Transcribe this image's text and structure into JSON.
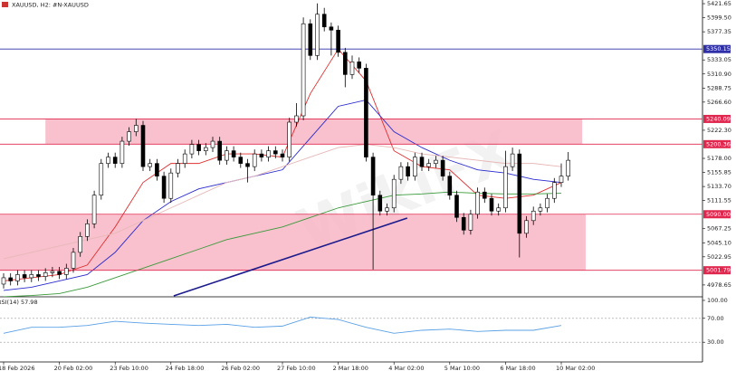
{
  "header": {
    "title": "XAUUSD, H2: #N-XAUUSD"
  },
  "watermark": "WikiFX",
  "chart_data": {
    "type": "candlestick",
    "up_color": "#ffffff",
    "down_color": "#000000",
    "ylim": [
      4960,
      5427.4
    ],
    "yticks": [
      5421.65,
      {
        "value": 5399.5,
        "label": "5399.50"
      },
      5377.35,
      5333.05,
      {
        "value": 5310.9,
        "label": "5310.90"
      },
      5288.75,
      {
        "value": 5266.6,
        "label": "5266.60"
      },
      {
        "value": 5222.3,
        "label": "5222.30"
      },
      {
        "value": 5178,
        "label": "5178.00"
      },
      5155.85,
      {
        "value": 5133.7,
        "label": "5133.70"
      },
      5111.55,
      5067.25,
      {
        "value": 5045.1,
        "label": "5045.10"
      },
      5022.95,
      4978.65
    ],
    "xticks": [
      {
        "value": 0,
        "label": "18 Feb 2026"
      },
      {
        "value": 8,
        "label": "20 Feb 02:00"
      },
      {
        "value": 16,
        "label": "23 Feb 10:00"
      },
      {
        "value": 24,
        "label": "24 Feb 18:00"
      },
      {
        "value": 32,
        "label": "26 Feb 02:00"
      },
      {
        "value": 40,
        "label": "27 Feb 10:00"
      },
      {
        "value": 48,
        "label": "2 Mar 18:00"
      },
      {
        "value": 56,
        "label": "4 Mar 02:00"
      },
      {
        "value": 64,
        "label": "5 Mar 10:00"
      },
      {
        "value": 72,
        "label": "6 Mar 18:00"
      },
      {
        "value": 80,
        "label": "10 Mar 02:00"
      }
    ],
    "open": [
      4980,
      4990,
      4985,
      4995,
      4990,
      4995,
      4992,
      4998,
      5000,
      4995,
      5005,
      5030,
      5055,
      5075,
      5120,
      5170,
      5180,
      5170,
      5205,
      5220,
      5230,
      5165,
      5170,
      5150,
      5115,
      5155,
      5170,
      5185,
      5200,
      5190,
      5195,
      5205,
      5175,
      5190,
      5180,
      5170,
      5165,
      5185,
      5180,
      5190,
      5185,
      5180,
      5235,
      5245,
      5390,
      5340,
      5405,
      5385,
      5380,
      5345,
      5310,
      5330,
      5320,
      5180,
      5120,
      5095,
      5100,
      5145,
      5165,
      5150,
      5180,
      5165,
      5170,
      5175,
      5150,
      5120,
      5085,
      5065,
      5090,
      5125,
      5115,
      5095,
      5100,
      5165,
      5185,
      5060,
      5080,
      5095,
      5100,
      5115,
      5140,
      5150
    ],
    "high": [
      4997,
      4997,
      5002,
      5002,
      5002,
      5002,
      5005,
      5007,
      5007,
      5012,
      5037,
      5062,
      5082,
      5127,
      5177,
      5187,
      5187,
      5212,
      5227,
      5240,
      5237,
      5177,
      5177,
      5157,
      5162,
      5177,
      5192,
      5207,
      5207,
      5202,
      5212,
      5212,
      5197,
      5197,
      5187,
      5177,
      5192,
      5192,
      5197,
      5197,
      5192,
      5242,
      5265,
      5400,
      5397,
      5422,
      5415,
      5392,
      5387,
      5352,
      5340,
      5337,
      5327,
      5187,
      5127,
      5107,
      5152,
      5172,
      5172,
      5187,
      5187,
      5177,
      5182,
      5182,
      5157,
      5127,
      5092,
      5097,
      5132,
      5132,
      5122,
      5107,
      5190,
      5195,
      5192,
      5087,
      5102,
      5107,
      5122,
      5147,
      5170,
      5188
    ],
    "low": [
      4973,
      4978,
      4978,
      4983,
      4983,
      4985,
      4985,
      4991,
      4988,
      4988,
      4998,
      5023,
      5048,
      5068,
      5113,
      5163,
      5163,
      5163,
      5198,
      5213,
      5158,
      5158,
      5143,
      5108,
      5108,
      5148,
      5163,
      5178,
      5183,
      5183,
      5188,
      5168,
      5168,
      5173,
      5163,
      5140,
      5158,
      5173,
      5173,
      5178,
      5173,
      5173,
      5228,
      5238,
      5333,
      5333,
      5378,
      5340,
      5338,
      5290,
      5303,
      5313,
      5173,
      5003,
      5088,
      5088,
      5093,
      5138,
      5143,
      5143,
      5158,
      5158,
      5163,
      5143,
      5113,
      5078,
      5058,
      5058,
      5083,
      5108,
      5088,
      5088,
      5093,
      5158,
      5022,
      5053,
      5073,
      5088,
      5093,
      5108,
      5133,
      5143
    ],
    "close": [
      4990,
      4985,
      4995,
      4990,
      4995,
      4992,
      4998,
      5000,
      4995,
      5005,
      5030,
      5055,
      5075,
      5120,
      5170,
      5180,
      5170,
      5205,
      5220,
      5230,
      5165,
      5170,
      5150,
      5115,
      5155,
      5170,
      5185,
      5200,
      5190,
      5195,
      5205,
      5175,
      5190,
      5180,
      5170,
      5165,
      5185,
      5180,
      5190,
      5185,
      5180,
      5235,
      5245,
      5390,
      5340,
      5405,
      5385,
      5380,
      5345,
      5310,
      5330,
      5320,
      5180,
      5120,
      5095,
      5100,
      5145,
      5165,
      5150,
      5180,
      5165,
      5170,
      5175,
      5150,
      5120,
      5085,
      5065,
      5090,
      5125,
      5115,
      5095,
      5100,
      5165,
      5185,
      5060,
      5080,
      5095,
      5100,
      5115,
      5140,
      5150,
      5175
    ],
    "lines": [
      {
        "color": "#e03030",
        "x": [
          0,
          4,
          8,
          12,
          16,
          20,
          24,
          28,
          32,
          36,
          40,
          44,
          48,
          52,
          56,
          60,
          64,
          68,
          72,
          76,
          80
        ],
        "values": [
          4985,
          4990,
          4995,
          5010,
          5070,
          5140,
          5170,
          5170,
          5185,
          5185,
          5180,
          5280,
          5350,
          5300,
          5190,
          5165,
          5160,
          5120,
          5115,
          5120,
          5140
        ]
      },
      {
        "color": "#2a2ad0",
        "x": [
          0,
          4,
          8,
          12,
          16,
          20,
          24,
          28,
          32,
          36,
          40,
          44,
          48,
          52,
          56,
          60,
          64,
          68,
          72,
          76,
          80
        ],
        "values": [
          4970,
          4975,
          4985,
          4995,
          5030,
          5080,
          5110,
          5130,
          5140,
          5150,
          5160,
          5210,
          5260,
          5270,
          5220,
          5195,
          5175,
          5160,
          5155,
          5145,
          5140
        ]
      },
      {
        "color": "#e8b8b8",
        "x": [
          0,
          4,
          8,
          12,
          16,
          20,
          24,
          28,
          32,
          36,
          40,
          44,
          48,
          52,
          56,
          60,
          64,
          68,
          72,
          76,
          80
        ],
        "values": [
          5020,
          5030,
          5040,
          5050,
          5060,
          5080,
          5100,
          5120,
          5140,
          5150,
          5165,
          5180,
          5195,
          5200,
          5195,
          5185,
          5180,
          5175,
          5170,
          5170,
          5165
        ]
      },
      {
        "color": "#3a9a3a",
        "x": [
          0,
          4,
          8,
          12,
          16,
          20,
          24,
          28,
          32,
          36,
          40,
          44,
          48,
          52,
          56,
          60,
          64,
          68,
          72,
          76,
          80
        ],
        "values": [
          4960,
          4962,
          4965,
          4975,
          4990,
          5005,
          5020,
          5035,
          5050,
          5060,
          5070,
          5085,
          5100,
          5110,
          5120,
          5122,
          5125,
          5123,
          5122,
          5122,
          5123
        ]
      }
    ],
    "levels": [
      {
        "value": 5350.15,
        "color": "#2f2fa8"
      },
      {
        "value": 5240.09,
        "color": "#e0284f"
      },
      {
        "value": 5200.36,
        "color": "#e0284f"
      },
      {
        "value": 5090,
        "label": "5090.00",
        "color": "#e0284f"
      },
      {
        "value": 5001.79,
        "color": "#e0284f"
      }
    ],
    "zones": [
      {
        "low": 5200.36,
        "high": 5240.09,
        "start": 6,
        "end": 83,
        "color": "#f7b6c4"
      },
      {
        "low": 5001.79,
        "high": 5090,
        "start": -1,
        "end": 83.5,
        "color": "#f7b6c4"
      }
    ],
    "trendline": {
      "color": "#1a1a8c",
      "x": [
        24.4,
        57.9
      ],
      "y": [
        4961.5,
        5084
      ]
    },
    "indicator": {
      "label": "RSI(14) 57.98",
      "color": "#5aa0e6",
      "ylim": [
        -3,
        106
      ],
      "yticks": [
        {
          "value": 100,
          "label": "100.00"
        },
        {
          "value": 70,
          "label": "70.00"
        },
        {
          "value": 30,
          "label": "30.00"
        }
      ],
      "levels": [
        70,
        30
      ],
      "x": [
        0,
        4,
        8,
        12,
        16,
        20,
        24,
        28,
        32,
        36,
        40,
        44,
        48,
        52,
        56,
        60,
        64,
        68,
        72,
        76,
        80
      ],
      "values": [
        45,
        55,
        55,
        58,
        65,
        62,
        60,
        58,
        60,
        55,
        57,
        72,
        68,
        55,
        45,
        50,
        52,
        48,
        50,
        50,
        58
      ]
    }
  }
}
